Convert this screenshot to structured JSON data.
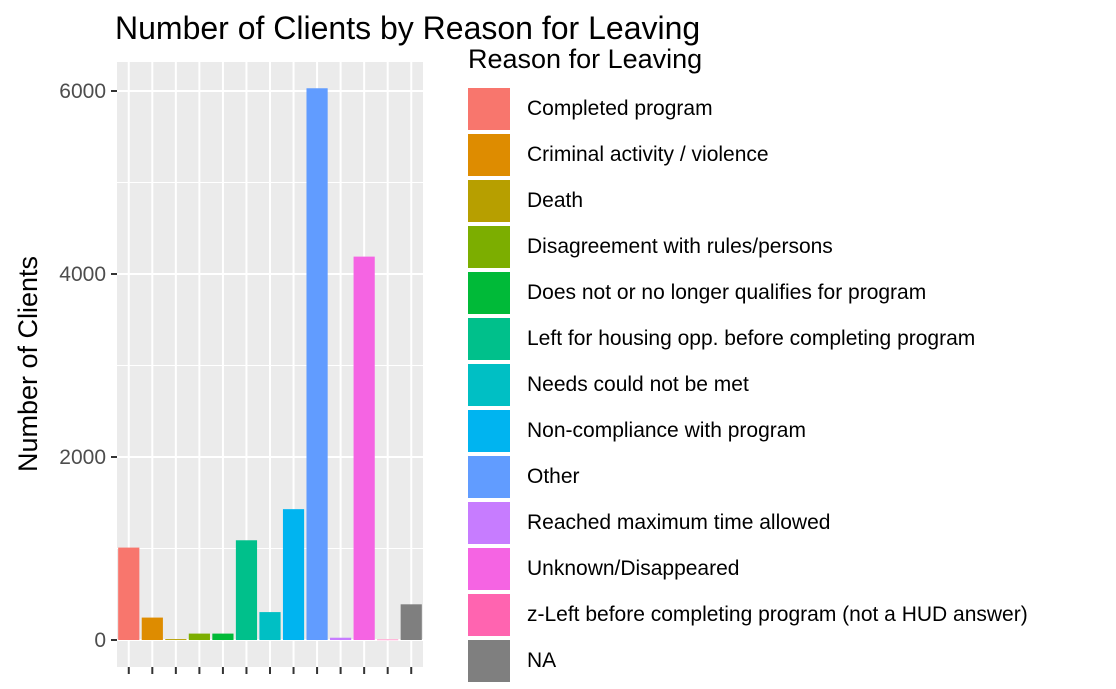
{
  "chart_data": {
    "type": "bar",
    "title": "Number of Clients by Reason for Leaving",
    "xlabel": "",
    "ylabel": "Number of Clients",
    "ylim": [
      0,
      6400
    ],
    "yticks": [
      0,
      2000,
      4000,
      6000
    ],
    "ytick_labels": [
      "0",
      "2000",
      "4000",
      "6000"
    ],
    "grid": true,
    "legend": {
      "title": "Reason for Leaving",
      "position": "right"
    },
    "categories": [
      "Completed program",
      "Criminal activity / violence",
      "Death",
      "Disagreement with rules/persons",
      "Does not or no longer qualifies for program",
      "Left for housing opp. before completing program",
      "Needs could not be met",
      "Non-compliance with program",
      "Other",
      "Reached maximum time allowed",
      "Unknown/Disappeared",
      "z-Left before completing program (not a HUD answer)",
      "NA"
    ],
    "values": [
      1010,
      245,
      10,
      70,
      70,
      1090,
      305,
      1430,
      6030,
      25,
      4190,
      5,
      390
    ],
    "colors": [
      "#F8766D",
      "#DE8C00",
      "#B79F00",
      "#7CAE00",
      "#00BA38",
      "#00C08B",
      "#00BFC4",
      "#00B4F0",
      "#619CFF",
      "#C77CFF",
      "#F564E3",
      "#FF64B0",
      "#7F7F7F"
    ]
  }
}
